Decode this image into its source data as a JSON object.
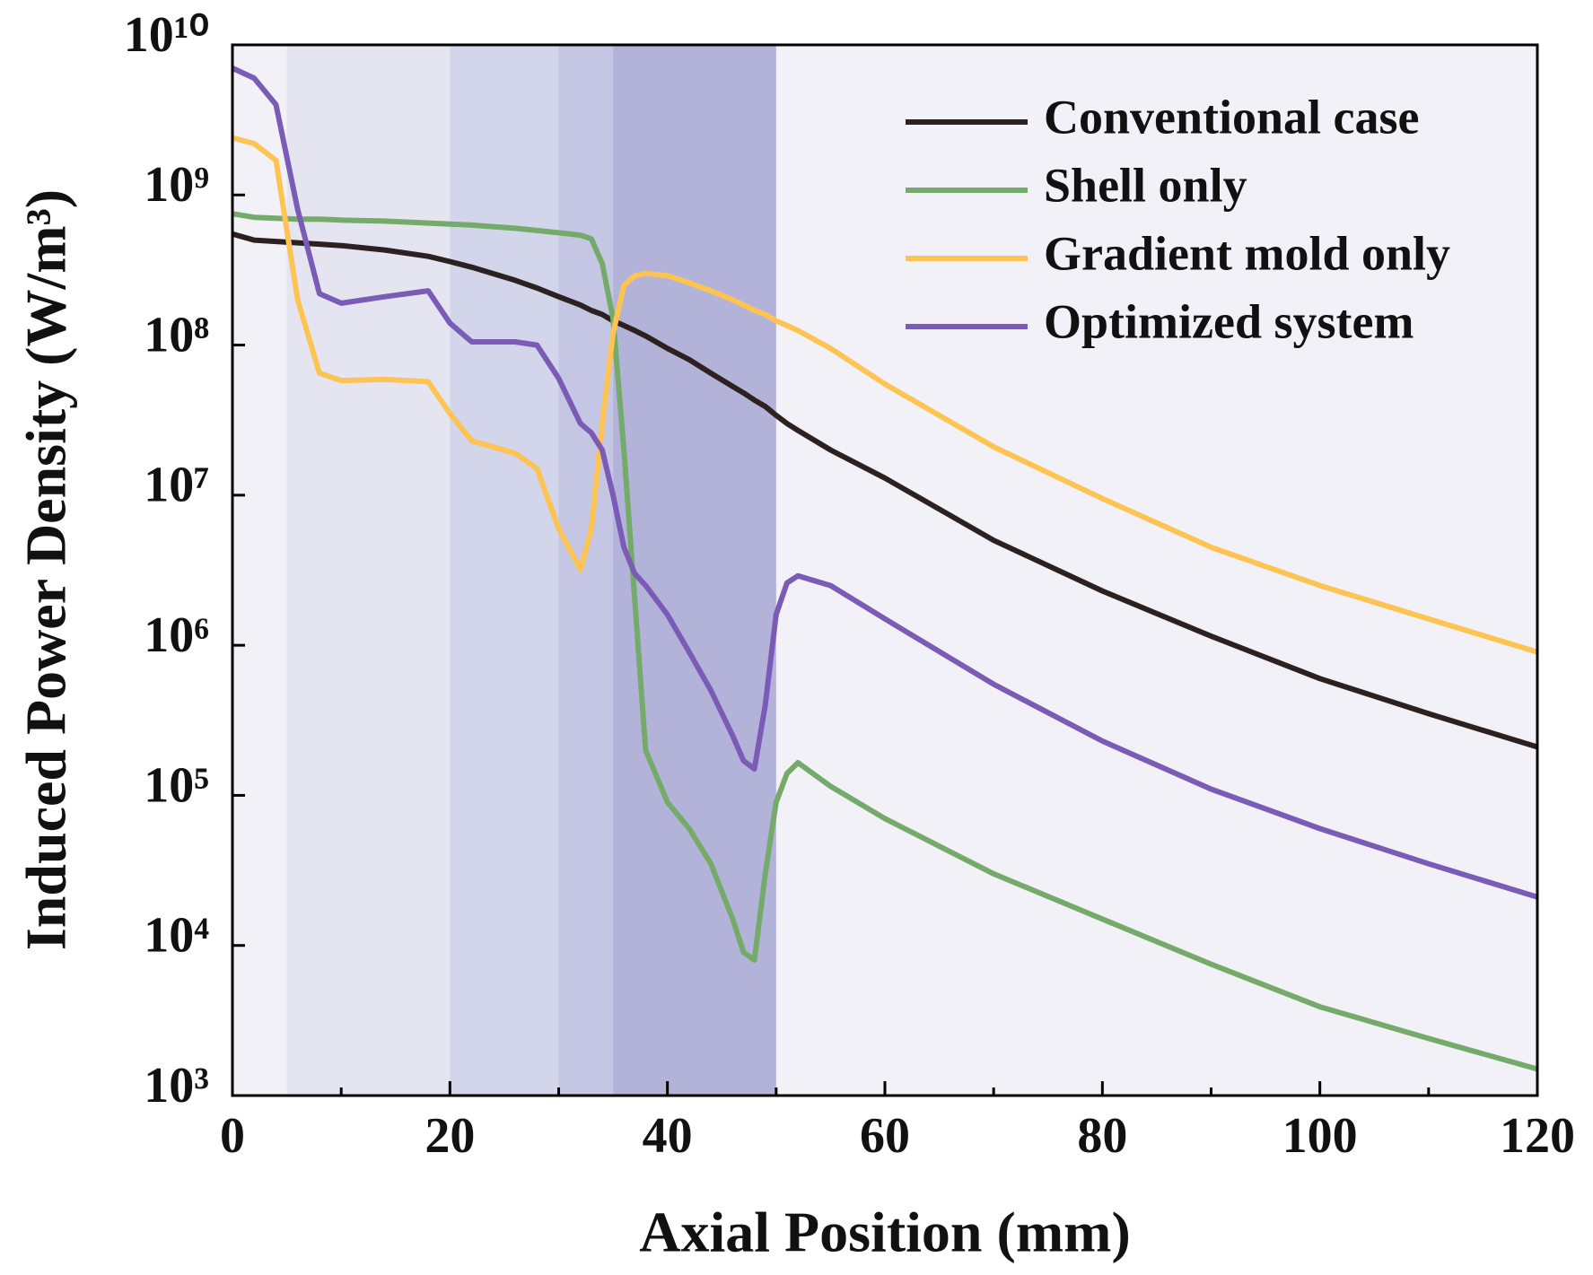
{
  "chart_data": {
    "type": "line",
    "x_label": "Axial Position (mm)",
    "y_label": "Induced Power Density (W/m³)",
    "log_y": true,
    "xlim": [
      0,
      120
    ],
    "xticks": [
      0,
      20,
      40,
      60,
      80,
      100,
      120
    ],
    "xminorticks": [
      10,
      30,
      50,
      70,
      90,
      110
    ],
    "ylim": [
      1000,
      10000000000
    ],
    "yticks": [
      {
        "value": 1000,
        "label": "10³"
      },
      {
        "value": 10000,
        "label": "10⁴"
      },
      {
        "value": 100000,
        "label": "10⁵"
      },
      {
        "value": 1000000,
        "label": "10⁶"
      },
      {
        "value": 10000000,
        "label": "10⁷"
      },
      {
        "value": 100000000,
        "label": "10⁸"
      },
      {
        "value": 1000000000,
        "label": "10⁹"
      },
      {
        "value": 10000000000,
        "label": "10¹⁰"
      }
    ],
    "legend": "top-right",
    "plot_background": "#f2f1f8",
    "shaded_regions": [
      {
        "x": [
          5,
          20
        ],
        "color": "#e5e5f2"
      },
      {
        "x": [
          20,
          30
        ],
        "color": "#d3d5eb"
      },
      {
        "x": [
          30,
          35
        ],
        "color": "#c5c6e4"
      },
      {
        "x": [
          35,
          50
        ],
        "color": "#b3b3d9"
      }
    ],
    "x": [
      0,
      2,
      4,
      6,
      8,
      10,
      14,
      18,
      20,
      22,
      26,
      28,
      30,
      32,
      33,
      34,
      35,
      36,
      37,
      38,
      40,
      42,
      44,
      46,
      47,
      48,
      49,
      50,
      51,
      52,
      55,
      60,
      70,
      80,
      90,
      100,
      110,
      120
    ],
    "series": [
      {
        "name": "Conventional case",
        "color": "#2d2020",
        "values": [
          550000000,
          500000000,
          490000000,
          480000000,
          470000000,
          460000000,
          430000000,
          390000000,
          360000000,
          330000000,
          270000000,
          240000000,
          210000000,
          185000000,
          170000000,
          160000000,
          145000000,
          135000000,
          125000000,
          115000000,
          95000000,
          80000000,
          65000000,
          53000000,
          48000000,
          43000000,
          39000000,
          34000000,
          30000000,
          27000000,
          20000000,
          13000000,
          5000000,
          2300000,
          1150000,
          600000,
          350000,
          210000
        ]
      },
      {
        "name": "Shell only",
        "color": "#74ab6a",
        "values": [
          750000000,
          710000000,
          700000000,
          690000000,
          690000000,
          680000000,
          670000000,
          650000000,
          640000000,
          630000000,
          600000000,
          580000000,
          560000000,
          540000000,
          510000000,
          350000000,
          150000000,
          20000000,
          2000000,
          200000,
          90000,
          60000,
          35000,
          15000,
          9000,
          8000,
          30000,
          90000,
          140000,
          165000,
          115000,
          70000,
          30000,
          15000,
          7500,
          3900,
          2400,
          1500
        ]
      },
      {
        "name": "Gradient mold only",
        "color": "#fdc353",
        "values": [
          2400000000,
          2200000000,
          1700000000,
          200000000,
          65000000,
          58000000,
          59000000,
          57000000,
          35000000,
          23000000,
          19000000,
          15000000,
          6000000,
          3200000,
          6000000,
          30000000,
          120000000,
          250000000,
          290000000,
          300000000,
          290000000,
          260000000,
          230000000,
          200000000,
          185000000,
          170000000,
          160000000,
          145000000,
          135000000,
          125000000,
          95000000,
          55000000,
          21000000,
          9500000,
          4500000,
          2500000,
          1500000,
          900000
        ]
      },
      {
        "name": "Optimized system",
        "color": "#7a5bb5",
        "values": [
          7000000000,
          6000000000,
          4000000000,
          800000000,
          220000000,
          190000000,
          210000000,
          230000000,
          140000000,
          105000000,
          105000000,
          100000000,
          60000000,
          30000000,
          26000000,
          20000000,
          10000000,
          4500000,
          3000000,
          2500000,
          1600000,
          900000,
          500000,
          250000,
          170000,
          150000,
          400000,
          1600000,
          2600000,
          2900000,
          2500000,
          1500000,
          550000,
          230000,
          110000,
          60000,
          35000,
          21000
        ]
      }
    ]
  }
}
